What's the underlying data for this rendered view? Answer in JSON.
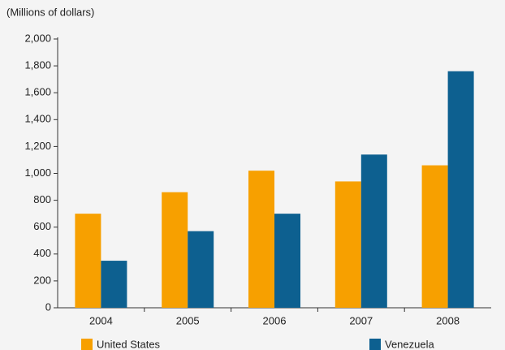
{
  "chart_data": {
    "type": "bar",
    "subtitle": "(Millions of dollars)",
    "categories": [
      "2004",
      "2005",
      "2006",
      "2007",
      "2008"
    ],
    "series": [
      {
        "name": "United States",
        "color": "#f7a000",
        "values": [
          700,
          860,
          1020,
          940,
          1060
        ]
      },
      {
        "name": "Venezuela",
        "color": "#0d6090",
        "values": [
          350,
          570,
          700,
          1140,
          1760
        ]
      }
    ],
    "ylim": [
      0,
      2000
    ],
    "yticks": [
      0,
      200,
      400,
      600,
      800,
      {
        "value": 1000,
        "label": "1,000"
      },
      {
        "value": 1200,
        "label": "1,200"
      },
      {
        "value": 1400,
        "label": "1,400"
      },
      {
        "value": 1600,
        "label": "1,600"
      },
      {
        "value": 1800,
        "label": "1,800"
      },
      {
        "value": 2000,
        "label": "2,000"
      }
    ],
    "grid": false,
    "legend": "bottom"
  }
}
